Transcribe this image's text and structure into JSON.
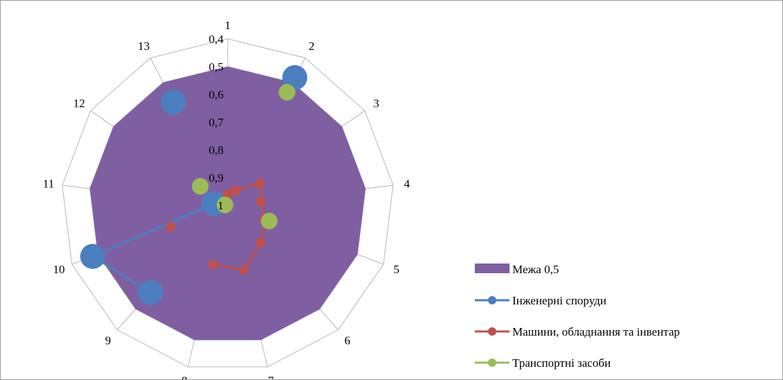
{
  "chart_data": {
    "type": "radar",
    "categories": [
      "1",
      "2",
      "3",
      "4",
      "5",
      "6",
      "7",
      "8",
      "9",
      "10",
      "11",
      "12",
      "13"
    ],
    "axis": {
      "reversed": true,
      "range": [
        1,
        0.4
      ],
      "ticks": [
        "0,4",
        "0,5",
        "0,6",
        "0,7",
        "0,8",
        "0,9",
        "1"
      ],
      "tick_values": [
        0.4,
        0.5,
        0.6,
        0.7,
        0.8,
        0.9,
        1.0
      ]
    },
    "grid": true,
    "legend_position": "right",
    "series": [
      {
        "name": "Межа 0,5",
        "kind": "area",
        "color": "#7f5fa2",
        "values": [
          0.5,
          0.5,
          0.5,
          0.5,
          0.5,
          0.5,
          0.5,
          0.5,
          0.5,
          0.5,
          0.5,
          0.5,
          0.5
        ]
      },
      {
        "name": "Інженерні споруди",
        "kind": "line",
        "color": "#4a7ebf",
        "marker_size": 18,
        "values": [
          null,
          0.48,
          null,
          null,
          null,
          null,
          null,
          null,
          0.58,
          0.48,
          0.95,
          null,
          0.58
        ]
      },
      {
        "name": "Машини, обладнання та інвентар",
        "kind": "line",
        "color": "#c0504d",
        "marker_size": 7,
        "values": [
          0.96,
          0.94,
          0.86,
          0.88,
          0.86,
          0.82,
          0.76,
          0.78,
          null,
          0.78,
          null,
          null,
          null
        ]
      },
      {
        "name": "Транспортні засоби",
        "kind": "scatter",
        "color": "#9bbb59",
        "marker_size": 12,
        "values": [
          null,
          0.54,
          null,
          null,
          0.84,
          null,
          null,
          null,
          null,
          null,
          0.99,
          0.88,
          null
        ]
      }
    ]
  }
}
